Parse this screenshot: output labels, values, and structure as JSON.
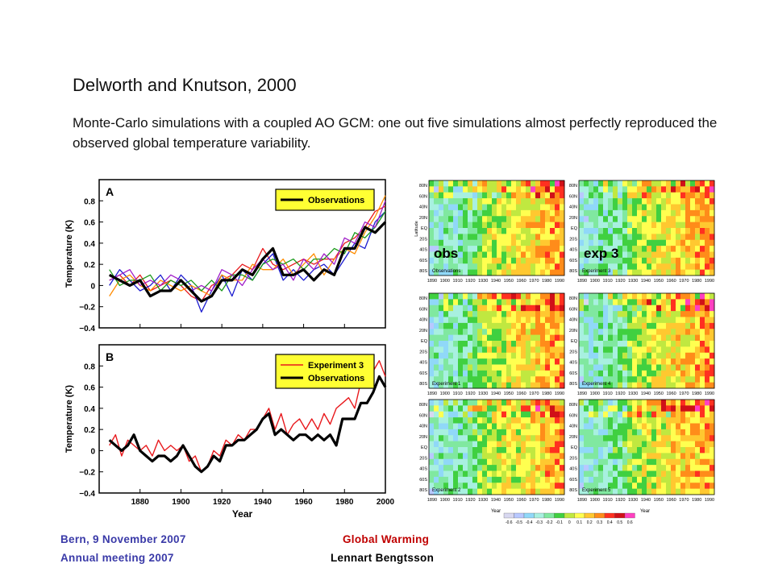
{
  "slide": {
    "title": "Delworth and Knutson, 2000",
    "subtitle": "Monte-Carlo simulations with a coupled AO GCM: one out five simulations almost perfectly reproduced the observed global temperature variability.",
    "footer": {
      "left_line1": "Bern, 9 November  2007",
      "left_line2": "Annual  meeting  2007",
      "mid_line1": "Global  Warming",
      "mid_line2": "Lennart  Bengtsson"
    }
  },
  "chart_data": [
    {
      "type": "line",
      "panel_label": "A",
      "xlabel": "Year",
      "ylabel": "Temperature (K)",
      "xlim": [
        1860,
        2000
      ],
      "ylim": [
        -0.4,
        1.0
      ],
      "xticks": [
        1880,
        1900,
        1920,
        1940,
        1960,
        1980,
        2000
      ],
      "yticks": [
        -0.4,
        -0.2,
        0,
        0.2,
        0.4,
        0.6,
        0.8
      ],
      "legend": {
        "placement": "top-right",
        "entries": [
          "Observations"
        ],
        "background": "#ffff33"
      },
      "series": [
        {
          "name": "Observations",
          "color": "#000000",
          "width": 3.2,
          "x": [
            1865,
            1870,
            1875,
            1880,
            1885,
            1890,
            1895,
            1900,
            1905,
            1910,
            1915,
            1920,
            1925,
            1930,
            1935,
            1940,
            1945,
            1950,
            1955,
            1960,
            1965,
            1970,
            1975,
            1980,
            1985,
            1990,
            1995,
            2000
          ],
          "y": [
            0.1,
            0.05,
            0.0,
            0.05,
            -0.1,
            -0.05,
            -0.05,
            0.05,
            -0.05,
            -0.15,
            -0.1,
            0.05,
            0.05,
            0.15,
            0.1,
            0.25,
            0.35,
            0.1,
            0.1,
            0.15,
            0.05,
            0.15,
            0.1,
            0.35,
            0.35,
            0.55,
            0.5,
            0.6
          ]
        },
        {
          "name": "",
          "color": "#e8191d",
          "width": 1.3,
          "x": [
            1865,
            1870,
            1875,
            1880,
            1885,
            1890,
            1895,
            1900,
            1905,
            1910,
            1915,
            1920,
            1925,
            1930,
            1935,
            1940,
            1945,
            1950,
            1955,
            1960,
            1965,
            1970,
            1975,
            1980,
            1985,
            1990,
            1995,
            2000
          ],
          "y": [
            0.05,
            0.1,
            0.0,
            0.1,
            -0.05,
            0.0,
            0.05,
            0.0,
            -0.1,
            -0.15,
            0.0,
            0.05,
            0.1,
            0.2,
            0.15,
            0.35,
            0.2,
            0.15,
            0.2,
            0.25,
            0.2,
            0.25,
            0.25,
            0.4,
            0.45,
            0.55,
            0.7,
            0.75
          ]
        },
        {
          "name": "",
          "color": "#1c1cd0",
          "width": 1.3,
          "x": [
            1865,
            1870,
            1875,
            1880,
            1885,
            1890,
            1895,
            1900,
            1905,
            1910,
            1915,
            1920,
            1925,
            1930,
            1935,
            1940,
            1945,
            1950,
            1955,
            1960,
            1965,
            1970,
            1975,
            1980,
            1985,
            1990,
            1995,
            2000
          ],
          "y": [
            0.0,
            0.15,
            0.05,
            -0.05,
            0.0,
            0.1,
            -0.05,
            0.1,
            0.0,
            -0.25,
            -0.05,
            0.1,
            -0.1,
            0.15,
            0.05,
            0.2,
            0.3,
            0.05,
            0.15,
            0.05,
            0.15,
            0.2,
            0.1,
            0.25,
            0.4,
            0.35,
            0.6,
            0.7
          ]
        },
        {
          "name": "",
          "color": "#ff8c00",
          "width": 1.3,
          "x": [
            1865,
            1870,
            1875,
            1880,
            1885,
            1890,
            1895,
            1900,
            1905,
            1910,
            1915,
            1920,
            1925,
            1930,
            1935,
            1940,
            1945,
            1950,
            1955,
            1960,
            1965,
            1970,
            1975,
            1980,
            1985,
            1990,
            1995,
            2000
          ],
          "y": [
            -0.1,
            0.05,
            0.1,
            0.0,
            -0.05,
            0.05,
            0.0,
            -0.05,
            0.0,
            -0.05,
            -0.1,
            0.1,
            0.05,
            0.05,
            0.2,
            0.15,
            0.15,
            0.25,
            0.1,
            0.2,
            0.3,
            0.1,
            0.25,
            0.35,
            0.3,
            0.5,
            0.65,
            0.85
          ]
        },
        {
          "name": "",
          "color": "#1a9a1a",
          "width": 1.3,
          "x": [
            1865,
            1870,
            1875,
            1880,
            1885,
            1890,
            1895,
            1900,
            1905,
            1910,
            1915,
            1920,
            1925,
            1930,
            1935,
            1940,
            1945,
            1950,
            1955,
            1960,
            1965,
            1970,
            1975,
            1980,
            1985,
            1990,
            1995,
            2000
          ],
          "y": [
            0.15,
            0.0,
            0.05,
            0.05,
            0.1,
            -0.05,
            0.05,
            0.0,
            0.05,
            -0.05,
            0.05,
            -0.05,
            0.1,
            0.1,
            0.05,
            0.2,
            0.25,
            0.2,
            0.25,
            0.15,
            0.25,
            0.25,
            0.35,
            0.3,
            0.5,
            0.45,
            0.55,
            0.7
          ]
        },
        {
          "name": "",
          "color": "#a01ec8",
          "width": 1.3,
          "x": [
            1865,
            1870,
            1875,
            1880,
            1885,
            1890,
            1895,
            1900,
            1905,
            1910,
            1915,
            1920,
            1925,
            1930,
            1935,
            1940,
            1945,
            1950,
            1955,
            1960,
            1965,
            1970,
            1975,
            1980,
            1985,
            1990,
            1995,
            2000
          ],
          "y": [
            0.05,
            0.1,
            0.15,
            0.0,
            0.05,
            0.0,
            0.1,
            0.05,
            -0.05,
            0.0,
            -0.05,
            0.15,
            0.1,
            0.0,
            0.15,
            0.25,
            0.15,
            0.2,
            0.05,
            0.25,
            0.15,
            0.3,
            0.2,
            0.45,
            0.4,
            0.6,
            0.55,
            0.8
          ]
        }
      ]
    },
    {
      "type": "line",
      "panel_label": "B",
      "xlabel": "Year",
      "ylabel": "Temperature (K)",
      "xlim": [
        1860,
        2000
      ],
      "ylim": [
        -0.4,
        1.0
      ],
      "xticks": [
        1880,
        1900,
        1920,
        1940,
        1960,
        1980,
        2000
      ],
      "yticks": [
        -0.4,
        -0.2,
        0,
        0.2,
        0.4,
        0.6,
        0.8
      ],
      "legend": {
        "placement": "top-right",
        "entries": [
          "Experiment 3",
          "Observations"
        ],
        "background": "#ffff33"
      },
      "series": [
        {
          "name": "Experiment 3",
          "color": "#e8191d",
          "width": 1.4,
          "x": [
            1865,
            1868,
            1871,
            1874,
            1877,
            1880,
            1883,
            1886,
            1889,
            1892,
            1895,
            1898,
            1901,
            1904,
            1907,
            1910,
            1913,
            1916,
            1919,
            1922,
            1925,
            1928,
            1931,
            1934,
            1937,
            1940,
            1943,
            1946,
            1949,
            1952,
            1955,
            1958,
            1961,
            1964,
            1967,
            1970,
            1973,
            1976,
            1979,
            1982,
            1985,
            1988,
            1991,
            1994,
            1997,
            2000
          ],
          "y": [
            0.05,
            0.15,
            -0.05,
            0.1,
            0.05,
            0.0,
            0.05,
            -0.05,
            0.1,
            0.0,
            0.05,
            0.0,
            0.05,
            -0.1,
            -0.05,
            -0.2,
            -0.15,
            0.0,
            -0.05,
            0.1,
            0.05,
            0.15,
            0.1,
            0.2,
            0.2,
            0.3,
            0.4,
            0.2,
            0.35,
            0.15,
            0.25,
            0.3,
            0.2,
            0.3,
            0.2,
            0.35,
            0.25,
            0.4,
            0.45,
            0.5,
            0.4,
            0.65,
            0.6,
            0.75,
            0.85,
            0.7
          ]
        },
        {
          "name": "Observations",
          "color": "#000000",
          "width": 3.2,
          "x": [
            1865,
            1868,
            1871,
            1874,
            1877,
            1880,
            1883,
            1886,
            1889,
            1892,
            1895,
            1898,
            1901,
            1904,
            1907,
            1910,
            1913,
            1916,
            1919,
            1922,
            1925,
            1928,
            1931,
            1934,
            1937,
            1940,
            1943,
            1946,
            1949,
            1952,
            1955,
            1958,
            1961,
            1964,
            1967,
            1970,
            1973,
            1976,
            1979,
            1982,
            1985,
            1988,
            1991,
            1994,
            1997,
            2000
          ],
          "y": [
            0.1,
            0.05,
            0.0,
            0.05,
            0.15,
            0.0,
            -0.05,
            -0.1,
            -0.05,
            -0.05,
            -0.1,
            -0.05,
            0.05,
            -0.05,
            -0.15,
            -0.2,
            -0.15,
            -0.05,
            -0.1,
            0.05,
            0.05,
            0.1,
            0.1,
            0.15,
            0.2,
            0.3,
            0.35,
            0.15,
            0.2,
            0.15,
            0.1,
            0.15,
            0.15,
            0.1,
            0.15,
            0.1,
            0.15,
            0.05,
            0.3,
            0.3,
            0.3,
            0.45,
            0.45,
            0.55,
            0.7,
            0.6
          ]
        }
      ]
    },
    {
      "type": "heatmap",
      "xlabel": "Year",
      "ylabel": "Latitude",
      "x_tick_labels": [
        "1890",
        "1900",
        "1910",
        "1920",
        "1930",
        "1940",
        "1950",
        "1960",
        "1970",
        "1980",
        "1990"
      ],
      "y_tick_labels": [
        "80N",
        "60N",
        "40N",
        "20N",
        "EQ",
        "20S",
        "40S",
        "60S",
        "80S"
      ],
      "colorbar_labels": [
        "-0.6",
        "-0.5",
        "-0.4",
        "-0.3",
        "-0.2",
        "-0.1",
        "0",
        "0.1",
        "0.2",
        "0.3",
        "0.4",
        "0.5",
        "0.6"
      ],
      "colorbar_colors": [
        "#d8d8f0",
        "#b8c8ff",
        "#90d8f8",
        "#a8f0e0",
        "#80e8a0",
        "#40d040",
        "#c0e840",
        "#ffff50",
        "#ffc830",
        "#ff8c1a",
        "#ff3020",
        "#d01018",
        "#ff40c0"
      ],
      "panels": [
        {
          "label": "Observations",
          "overlay": "obs"
        },
        {
          "label": "Experiment 3",
          "overlay": "exp 3"
        },
        {
          "label": "Experiment 1",
          "overlay": ""
        },
        {
          "label": "Experiment 4",
          "overlay": ""
        },
        {
          "label": "Experiment 2",
          "overlay": ""
        },
        {
          "label": "Experiment 5",
          "overlay": ""
        }
      ]
    }
  ]
}
